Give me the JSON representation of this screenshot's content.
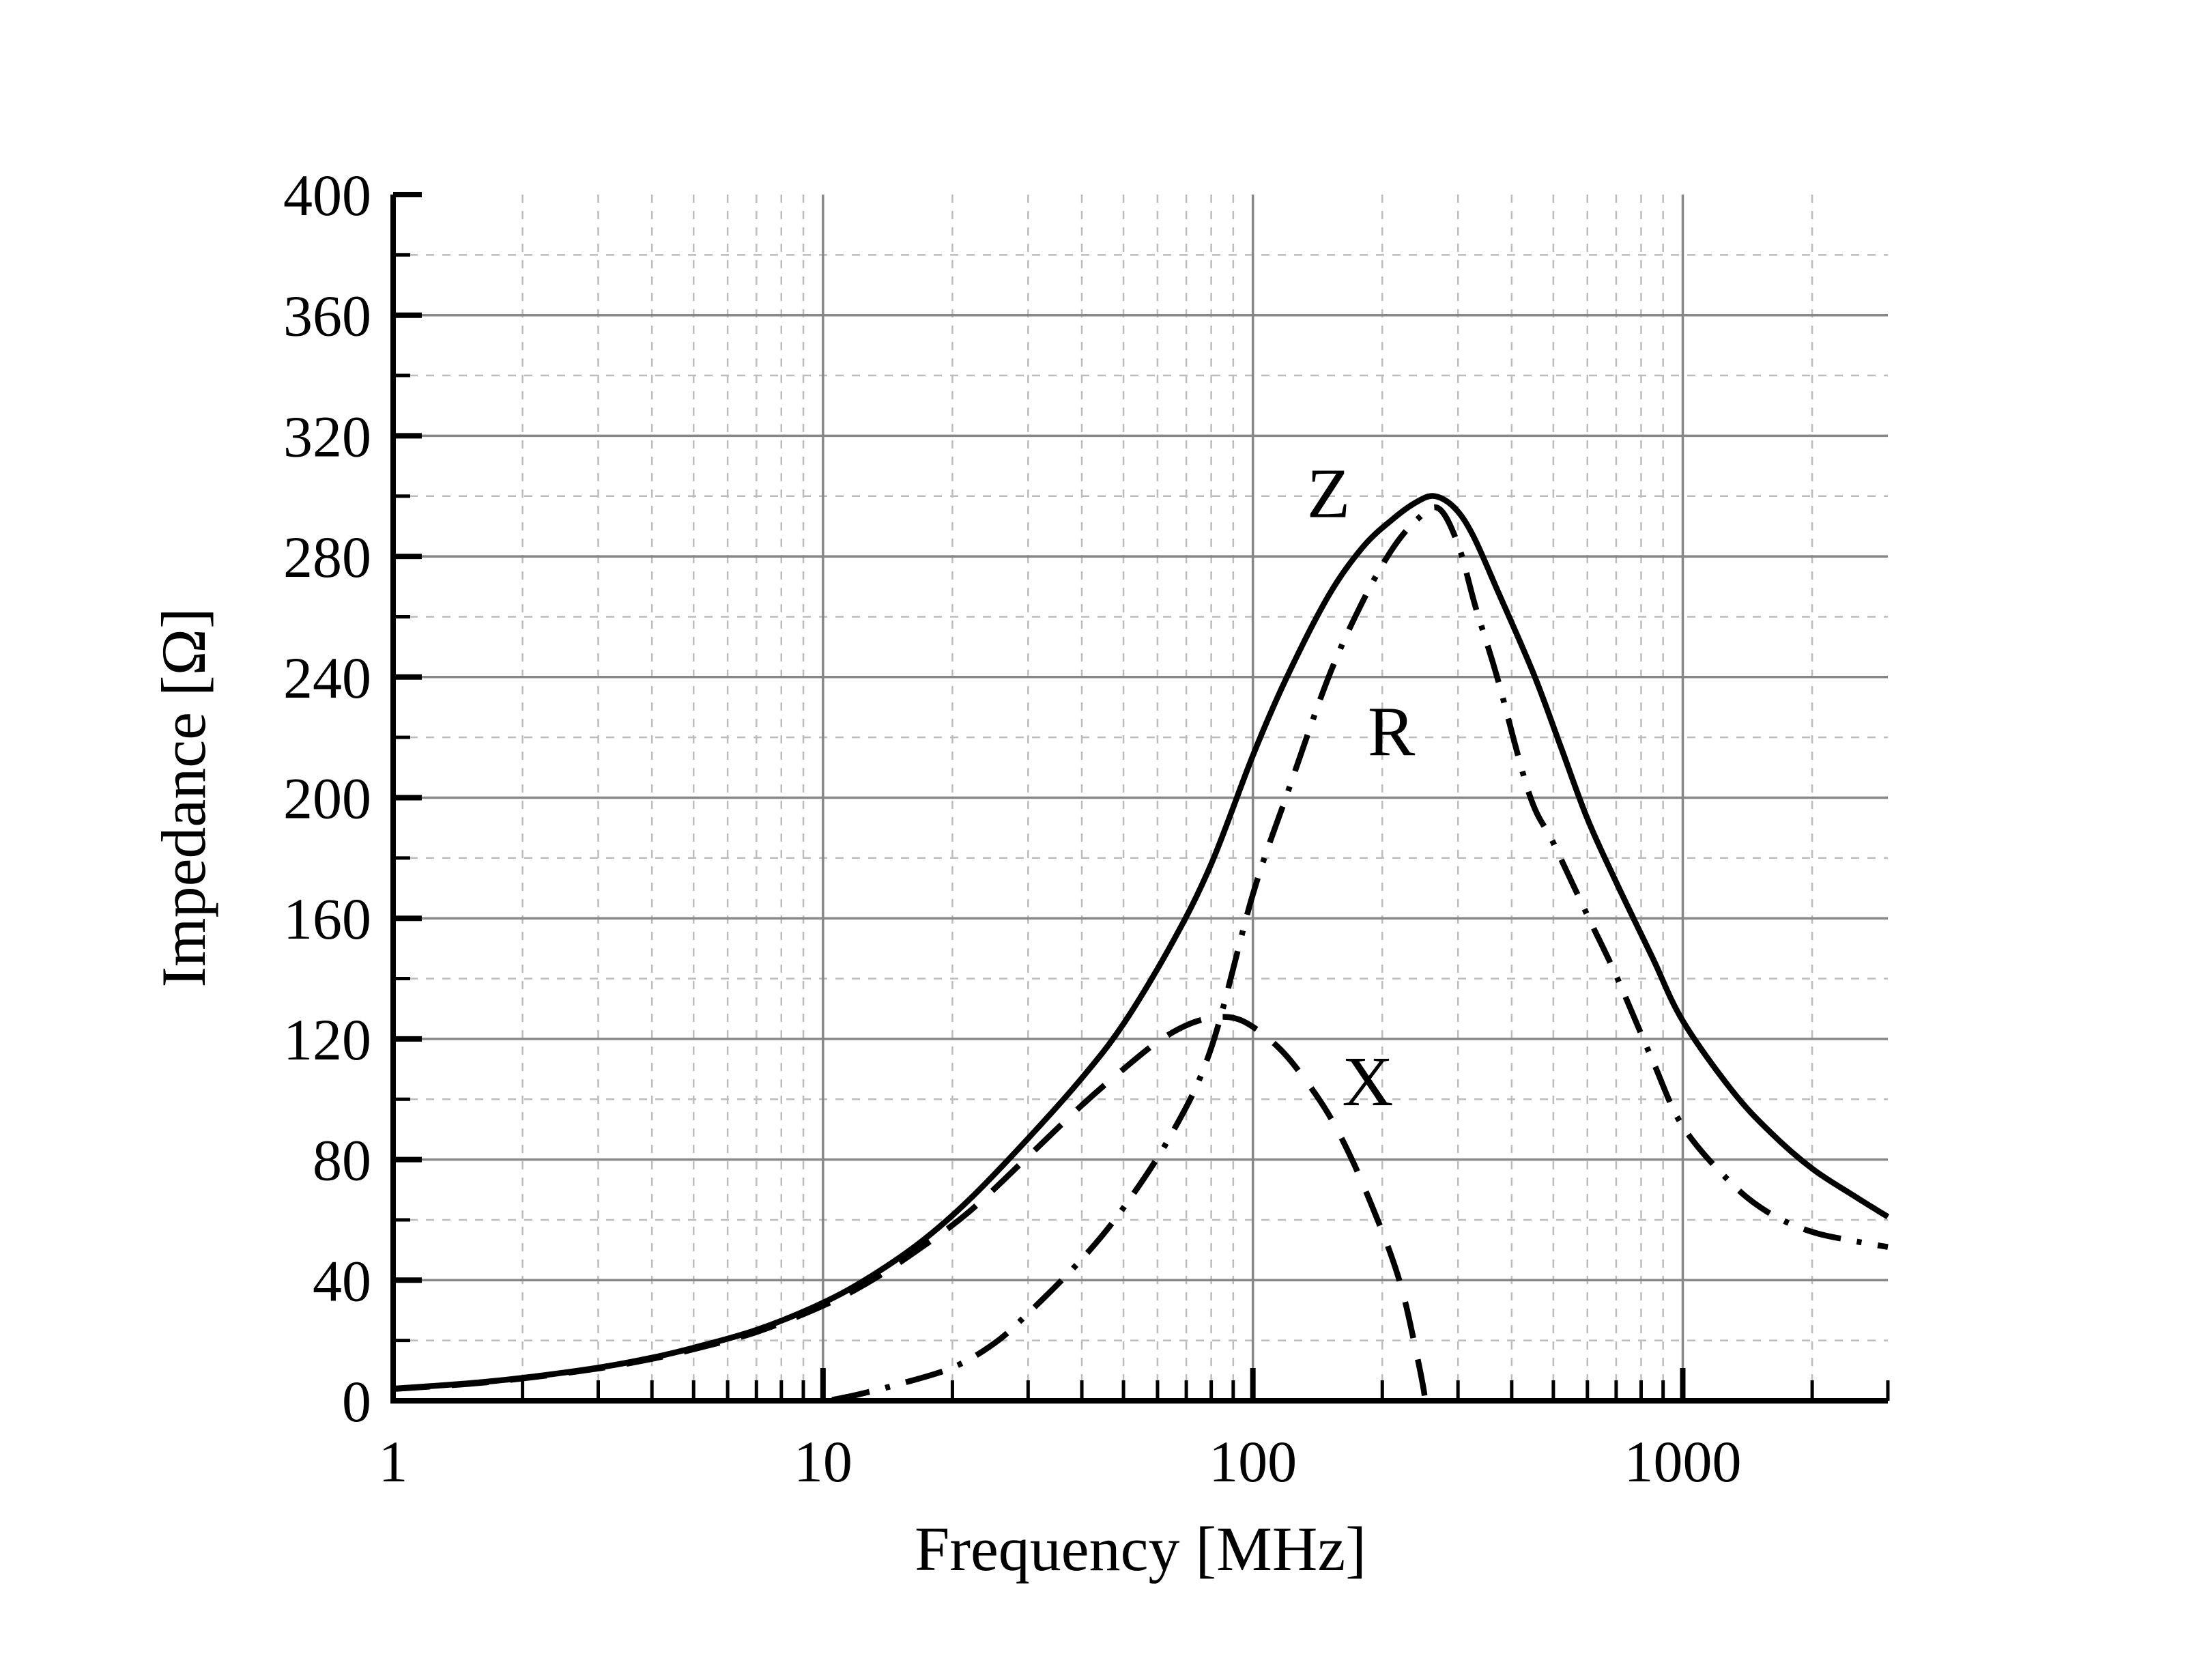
{
  "chart_data": {
    "type": "line",
    "title": "",
    "xlabel": "Frequency [MHz]",
    "ylabel": "Impedance [Ω]",
    "x_scale": "log",
    "xlim": [
      1,
      3000
    ],
    "ylim": [
      0,
      400
    ],
    "x_major_ticks": [
      1,
      10,
      100,
      1000
    ],
    "x_major_tick_labels": [
      "1",
      "10",
      "100",
      "1000"
    ],
    "x_minor_ticks": [
      2,
      3,
      4,
      5,
      6,
      7,
      8,
      9,
      20,
      30,
      40,
      50,
      60,
      70,
      80,
      90,
      200,
      300,
      400,
      500,
      600,
      700,
      800,
      900,
      2000,
      3000
    ],
    "y_major_ticks": [
      0,
      40,
      80,
      120,
      160,
      200,
      240,
      280,
      320,
      360,
      400
    ],
    "y_major_tick_labels": [
      "0",
      "40",
      "80",
      "120",
      "160",
      "200",
      "240",
      "280",
      "320",
      "360",
      "400"
    ],
    "y_minor_ticks": [
      20,
      60,
      100,
      140,
      180,
      220,
      260,
      300,
      340,
      380
    ],
    "grid": "on",
    "legend_position": "inline-curve-labels",
    "colors": {
      "background": "#ffffff",
      "curves": "#000000",
      "axis": "#000000",
      "grid_major": "#878787",
      "grid_minor": "#bcbcbc",
      "text": "#000000"
    },
    "series": [
      {
        "name": "Z",
        "line_style": "solid",
        "label": "Z",
        "label_at": {
          "x": 150,
          "y": 293
        },
        "points": [
          [
            1,
            4
          ],
          [
            1.5,
            5.8
          ],
          [
            2,
            7.6
          ],
          [
            3,
            11
          ],
          [
            4,
            14.3
          ],
          [
            5,
            17.6
          ],
          [
            7,
            23.5
          ],
          [
            10,
            32.5
          ],
          [
            13,
            41.5
          ],
          [
            17,
            53
          ],
          [
            22,
            67
          ],
          [
            30,
            87
          ],
          [
            40,
            107
          ],
          [
            50,
            125
          ],
          [
            65,
            152
          ],
          [
            80,
            178
          ],
          [
            100,
            214
          ],
          [
            120,
            240
          ],
          [
            150,
            267
          ],
          [
            180,
            283
          ],
          [
            210,
            292
          ],
          [
            240,
            298
          ],
          [
            265,
            300
          ],
          [
            295,
            296
          ],
          [
            325,
            287
          ],
          [
            370,
            269
          ],
          [
            450,
            241
          ],
          [
            520,
            217
          ],
          [
            600,
            193
          ],
          [
            700,
            172
          ],
          [
            850,
            147
          ],
          [
            1000,
            126
          ],
          [
            1300,
            103
          ],
          [
            1600,
            89
          ],
          [
            2000,
            77
          ],
          [
            2500,
            68
          ],
          [
            3000,
            61
          ]
        ]
      },
      {
        "name": "R",
        "line_style": "dash-dot",
        "label": "R",
        "label_at": {
          "x": 210,
          "y": 214
        },
        "points": [
          [
            10.5,
            0.3
          ],
          [
            12,
            2
          ],
          [
            15,
            5.5
          ],
          [
            20,
            11
          ],
          [
            25,
            19
          ],
          [
            30,
            29
          ],
          [
            40,
            47
          ],
          [
            50,
            64
          ],
          [
            65,
            89
          ],
          [
            80,
            117
          ],
          [
            100,
            168
          ],
          [
            120,
            201
          ],
          [
            150,
            240
          ],
          [
            180,
            265
          ],
          [
            210,
            282
          ],
          [
            240,
            292
          ],
          [
            270,
            296
          ],
          [
            300,
            284
          ],
          [
            330,
            263
          ],
          [
            370,
            240
          ],
          [
            440,
            201
          ],
          [
            500,
            185
          ],
          [
            600,
            161
          ],
          [
            700,
            141
          ],
          [
            850,
            113
          ],
          [
            1000,
            91
          ],
          [
            1300,
            72
          ],
          [
            1600,
            62
          ],
          [
            2000,
            56
          ],
          [
            2500,
            53
          ],
          [
            3000,
            51
          ]
        ]
      },
      {
        "name": "X",
        "line_style": "dashed",
        "label": "X",
        "label_at": {
          "x": 185,
          "y": 98
        },
        "points": [
          [
            1,
            3.9
          ],
          [
            1.5,
            5.6
          ],
          [
            2,
            7.4
          ],
          [
            3,
            10.7
          ],
          [
            4,
            13.9
          ],
          [
            5,
            17.1
          ],
          [
            7,
            22.8
          ],
          [
            10,
            31.5
          ],
          [
            13,
            40
          ],
          [
            17,
            51
          ],
          [
            22,
            63
          ],
          [
            30,
            81
          ],
          [
            40,
            98
          ],
          [
            50,
            110
          ],
          [
            60,
            119
          ],
          [
            70,
            124.5
          ],
          [
            80,
            127
          ],
          [
            90,
            127
          ],
          [
            100,
            124
          ],
          [
            115,
            117
          ],
          [
            130,
            108
          ],
          [
            150,
            95
          ],
          [
            170,
            80
          ],
          [
            190,
            64
          ],
          [
            210,
            48
          ],
          [
            225,
            34
          ],
          [
            240,
            16
          ],
          [
            248,
            6
          ],
          [
            252,
            0
          ]
        ]
      }
    ]
  }
}
